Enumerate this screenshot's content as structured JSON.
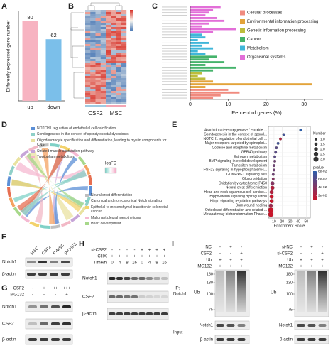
{
  "chart_data": [
    {
      "panel": "A",
      "type": "bar",
      "ylabel": "Differently expressed gene number",
      "categories": [
        "up",
        "down"
      ],
      "values": [
        80,
        62
      ],
      "colors": [
        "#f7b3c1",
        "#7bbfea"
      ],
      "ylim": [
        0,
        90
      ]
    },
    {
      "panel": "C",
      "type": "hbar",
      "xlabel": "Percent of genes (%)",
      "xlim": [
        0,
        35
      ],
      "xticks": [
        0,
        10,
        20,
        30
      ],
      "groups": [
        {
          "name": "Cellular processes",
          "color": "#f08a7e"
        },
        {
          "name": "Environmental information processing",
          "color": "#e3a33a"
        },
        {
          "name": "Genetic information processing",
          "color": "#bdbd3c"
        },
        {
          "name": "Cancer",
          "color": "#45b36b"
        },
        {
          "name": "Metabolism",
          "color": "#3fb6d9"
        },
        {
          "name": "Organismal systems",
          "color": "#e26fd8"
        }
      ],
      "values": [
        8,
        6,
        5,
        4,
        7,
        9,
        5,
        3,
        12,
        6,
        3,
        4,
        2,
        5,
        3,
        6,
        2,
        4,
        7,
        5,
        9,
        4,
        12,
        6,
        3,
        2,
        4,
        6,
        32,
        4,
        10,
        13,
        8,
        6
      ],
      "bar_groups": [
        5,
        5,
        5,
        5,
        5,
        5,
        5,
        5,
        5,
        5,
        4,
        4,
        4,
        4,
        4,
        4,
        4,
        4,
        3,
        3,
        3,
        3,
        3,
        3,
        2,
        2,
        2,
        1,
        1,
        1,
        0,
        0,
        0,
        0
      ]
    },
    {
      "panel": "E",
      "type": "dot",
      "xlabel": "Enrichment Score",
      "xlim": [
        3,
        55
      ],
      "xticks": [
        10,
        20,
        30,
        40,
        50
      ],
      "categories": [
        "Arachidonate epoxygenase / epoxide ...",
        "Somitogenesis in the context of spond...",
        "NOTCH1 regulation of endothelial cell ...",
        "Major receptors targeted by epinephri...",
        "Codeine and morphine metabolism",
        "GPR40 pathway",
        "Estrogen metabolism",
        "BMP signaling in eyelid development",
        "Tamoxifen metabolism",
        "FGF23 signaling in hypophosphatemic...",
        "GDNF/RET signaling axis",
        "Glucuronidation",
        "Oxidation by cytochrome P450",
        "Neural crest differentiation",
        "Head and neck squamous cell carcino...",
        "Hippo-Merlin signaling dysregulation",
        "Hippo signaling regulation pathways",
        "Burn wound healing",
        "Osteoblast differentiation and related ...",
        "Metapathway biotransformation Phase..."
      ],
      "values": [
        43,
        22,
        18,
        15,
        13,
        12,
        11,
        11,
        10,
        10,
        9,
        9,
        8,
        8,
        7,
        7,
        7,
        6,
        6,
        6
      ],
      "sizes": [
        1,
        1,
        1,
        1,
        1,
        1,
        1,
        1,
        1,
        1,
        1,
        1,
        2,
        2,
        2,
        2,
        2,
        2,
        3,
        3
      ],
      "pvalues": [
        0.08,
        0.07,
        0.02,
        0.07,
        0.06,
        0.06,
        0.06,
        0.05,
        0.05,
        0.05,
        0.05,
        0.04,
        0.04,
        0.02,
        0.02,
        0.01,
        0.01,
        0.03,
        0.01,
        0.01
      ],
      "size_title": "Number",
      "size_ticks": [
        {
          "value": 1,
          "label": "1.0"
        },
        {
          "value": 1.5,
          "label": "1.5"
        },
        {
          "value": 2,
          "label": "2.0"
        },
        {
          "value": 2.5,
          "label": "2.5"
        },
        {
          "value": 3,
          "label": "3.0"
        }
      ],
      "color_title": "pvalue",
      "clim": [
        0.01,
        0.08
      ],
      "low_color": "#c8162b",
      "high_color": "#2d5fab",
      "color_ticks": [
        {
          "value": 0.08,
          "label": "8e-02"
        },
        {
          "value": 0.06,
          "label": "6e-02"
        },
        {
          "value": 0.04,
          "label": "4e-02"
        },
        {
          "value": 0.02,
          "label": "2e-02"
        }
      ]
    }
  ],
  "heatmap": {
    "panel": "B",
    "columns": [
      "CSF2",
      "MSC"
    ]
  },
  "chord": {
    "panel": "D",
    "color_label": "logFC",
    "top_legend": [
      "NOTCH1 regulation of endothelial cell calcification",
      "Somitogenesis in the context of spondylocostal dysostosis",
      "Oligodendrocyte specification and differentiation, leading to myelin components for CNS",
      "Striated muscle contraction pathway",
      "Tryptophan metabolism"
    ],
    "top_colors": [
      "#5b8fd6",
      "#8fd0c8",
      "#e9e2a0",
      "#c6a5d8",
      "#f2b8c6"
    ],
    "bottom_legend": [
      "Neural crest differentiation",
      "Canonical and non-canonical Notch signaling",
      "Epithelial to mesenchymal transition in colorectal cancer",
      "Malignant pleural mesothelioma",
      "Heart development"
    ],
    "bottom_colors": [
      "#bfbfbf",
      "#7fd1c7",
      "#f3d26b",
      "#f5b9d2",
      "#a7d88a"
    ]
  },
  "blot_F": {
    "panel": "F",
    "columns": [
      "MSC",
      "CSF2",
      "P-MSC",
      "P-CSF2"
    ],
    "rows": [
      "Notch1",
      "β-actin"
    ]
  },
  "blot_G": {
    "panel": "G",
    "conditions": [
      {
        "name": "CSF2",
        "signs": [
          "-",
          "+",
          "++",
          "+++"
        ]
      },
      {
        "name": "MG132",
        "signs": [
          "-",
          "-",
          "-",
          "+"
        ]
      }
    ],
    "rows": [
      "Notch1",
      "CSF2",
      "β-actin"
    ]
  },
  "blot_H": {
    "panel": "H",
    "conditions": [
      {
        "name": "si-CSF2",
        "signs": [
          "-",
          "-",
          "-",
          "-",
          "+",
          "+",
          "+",
          "+"
        ]
      },
      {
        "name": "CHX",
        "signs": [
          "+",
          "+",
          "+",
          "+",
          "+",
          "+",
          "+",
          "+"
        ]
      },
      {
        "name": "Time/h",
        "signs": [
          "0",
          "4",
          "8",
          "16",
          "0",
          "4",
          "8",
          "16"
        ]
      }
    ],
    "rows": [
      "Notch1",
      "CSF2",
      "β-actin"
    ]
  },
  "blot_I": {
    "panel": "I",
    "ip_label": [
      "IP:",
      "Notch1"
    ],
    "input_label": "Input",
    "groups": [
      {
        "conditions": [
          {
            "name": "NC",
            "signs": [
              "-",
              "+",
              "-"
            ]
          },
          {
            "name": "CSF2",
            "signs": [
              "-",
              "-",
              "+"
            ]
          },
          {
            "name": "Ub",
            "signs": [
              "+",
              "+",
              "+"
            ]
          },
          {
            "name": "MG132",
            "signs": [
              "+",
              "+",
              "+"
            ]
          }
        ],
        "markers": [
          180,
          130,
          100,
          75
        ],
        "blot_label": "Ub",
        "rows": [
          "Notch1",
          "β-actin"
        ]
      },
      {
        "conditions": [
          {
            "name": "si-NC",
            "signs": [
              "-",
              "+",
              "-"
            ]
          },
          {
            "name": "si-CSF2",
            "signs": [
              "-",
              "-",
              "+"
            ]
          },
          {
            "name": "Ub",
            "signs": [
              "+",
              "+",
              "+"
            ]
          },
          {
            "name": "MG132",
            "signs": [
              "+",
              "+",
              "+"
            ]
          }
        ],
        "markers": [
          180,
          130,
          100,
          75
        ],
        "blot_label": "Ub",
        "rows": [
          "Notch1",
          "β-actin"
        ]
      }
    ]
  }
}
